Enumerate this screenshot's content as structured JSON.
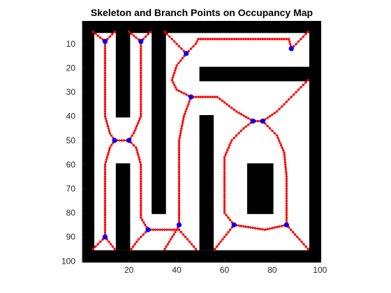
{
  "chart_data": {
    "type": "image-with-overlay",
    "title": "Skeleton and Branch Points on Occupancy Map",
    "xlabel": "",
    "ylabel": "",
    "xlim": [
      0.5,
      100.5
    ],
    "ylim": [
      0.5,
      100.5
    ],
    "y_reversed": true,
    "xticks": [
      20,
      40,
      60,
      80,
      100
    ],
    "yticks": [
      10,
      20,
      30,
      40,
      50,
      60,
      70,
      80,
      90,
      100
    ],
    "grid": false,
    "legend": "none",
    "colors": {
      "occupied": "#000000",
      "free": "#ffffff",
      "skeleton": "#ff0000",
      "branch_point": "#0000ff"
    },
    "occupied_regions": [
      {
        "x": [
          1,
          100
        ],
        "y": [
          1,
          5
        ]
      },
      {
        "x": [
          1,
          100
        ],
        "y": [
          96,
          100
        ]
      },
      {
        "x": [
          1,
          5
        ],
        "y": [
          1,
          100
        ]
      },
      {
        "x": [
          96,
          100
        ],
        "y": [
          1,
          100
        ]
      },
      {
        "x": [
          15,
          20
        ],
        "y": [
          5,
          40
        ]
      },
      {
        "x": [
          15,
          20
        ],
        "y": [
          60,
          95
        ]
      },
      {
        "x": [
          30,
          35
        ],
        "y": [
          5,
          80
        ]
      },
      {
        "x": [
          50,
          96
        ],
        "y": [
          20,
          25
        ]
      },
      {
        "x": [
          50,
          55
        ],
        "y": [
          40,
          95
        ]
      },
      {
        "x": [
          70,
          80
        ],
        "y": [
          60,
          80
        ]
      }
    ],
    "skeleton_paths": [
      [
        [
          5,
          5
        ],
        [
          10,
          9
        ],
        [
          14,
          5
        ]
      ],
      [
        [
          10,
          9
        ],
        [
          10,
          25
        ],
        [
          10,
          40
        ],
        [
          12,
          47
        ],
        [
          14,
          50
        ]
      ],
      [
        [
          14,
          50
        ],
        [
          20,
          50
        ]
      ],
      [
        [
          14,
          50
        ],
        [
          12,
          53
        ],
        [
          10,
          60
        ],
        [
          10,
          75
        ],
        [
          10,
          90
        ]
      ],
      [
        [
          5,
          95
        ],
        [
          10,
          90
        ],
        [
          14,
          95
        ]
      ],
      [
        [
          20,
          5
        ],
        [
          25,
          9
        ],
        [
          29,
          5
        ]
      ],
      [
        [
          25,
          9
        ],
        [
          25,
          25
        ],
        [
          25,
          40
        ],
        [
          22,
          47
        ],
        [
          20,
          50
        ]
      ],
      [
        [
          20,
          50
        ],
        [
          23,
          53
        ],
        [
          25,
          60
        ],
        [
          25,
          75
        ],
        [
          25,
          82
        ],
        [
          28,
          87
        ]
      ],
      [
        [
          28,
          87
        ],
        [
          24,
          91
        ],
        [
          21,
          95
        ]
      ],
      [
        [
          28,
          87
        ],
        [
          41,
          87
        ]
      ],
      [
        [
          41,
          87
        ],
        [
          48,
          95
        ]
      ],
      [
        [
          35,
          5
        ],
        [
          40,
          10
        ],
        [
          44,
          14
        ]
      ],
      [
        [
          44,
          14
        ],
        [
          48,
          10
        ],
        [
          49,
          8
        ],
        [
          65,
          8
        ],
        [
          87,
          8
        ],
        [
          88,
          12
        ]
      ],
      [
        [
          88,
          12
        ],
        [
          90,
          10
        ],
        [
          95,
          5
        ]
      ],
      [
        [
          44,
          14
        ],
        [
          40,
          19
        ],
        [
          38,
          25
        ],
        [
          40,
          29
        ],
        [
          46,
          32
        ]
      ],
      [
        [
          46,
          32
        ],
        [
          43,
          40
        ],
        [
          41,
          50
        ],
        [
          41,
          70
        ],
        [
          41,
          80
        ],
        [
          41,
          85
        ]
      ],
      [
        [
          35,
          95
        ],
        [
          40,
          87
        ],
        [
          41,
          85
        ]
      ],
      [
        [
          46,
          32
        ],
        [
          57,
          32
        ],
        [
          65,
          38
        ],
        [
          72,
          42
        ]
      ],
      [
        [
          72,
          42
        ],
        [
          76,
          42
        ]
      ],
      [
        [
          76,
          42
        ],
        [
          82,
          38
        ],
        [
          90,
          30
        ],
        [
          95,
          25
        ]
      ],
      [
        [
          76,
          42
        ],
        [
          82,
          48
        ],
        [
          85,
          55
        ],
        [
          86,
          65
        ],
        [
          86,
          75
        ],
        [
          86,
          85
        ]
      ],
      [
        [
          86,
          85
        ],
        [
          95,
          95
        ]
      ],
      [
        [
          86,
          85
        ],
        [
          77,
          87
        ],
        [
          64,
          85
        ]
      ],
      [
        [
          64,
          85
        ],
        [
          56,
          95
        ]
      ],
      [
        [
          64,
          85
        ],
        [
          60,
          80
        ],
        [
          60,
          70
        ],
        [
          60,
          57
        ],
        [
          63,
          50
        ],
        [
          68,
          45
        ],
        [
          72,
          42
        ]
      ]
    ],
    "branch_points": [
      [
        10,
        9
      ],
      [
        25,
        9
      ],
      [
        44,
        14
      ],
      [
        88,
        12
      ],
      [
        46,
        32
      ],
      [
        72,
        42
      ],
      [
        76,
        42
      ],
      [
        14,
        50
      ],
      [
        20,
        50
      ],
      [
        10,
        90
      ],
      [
        28,
        87
      ],
      [
        41,
        85
      ],
      [
        64,
        85
      ],
      [
        86,
        85
      ]
    ]
  }
}
